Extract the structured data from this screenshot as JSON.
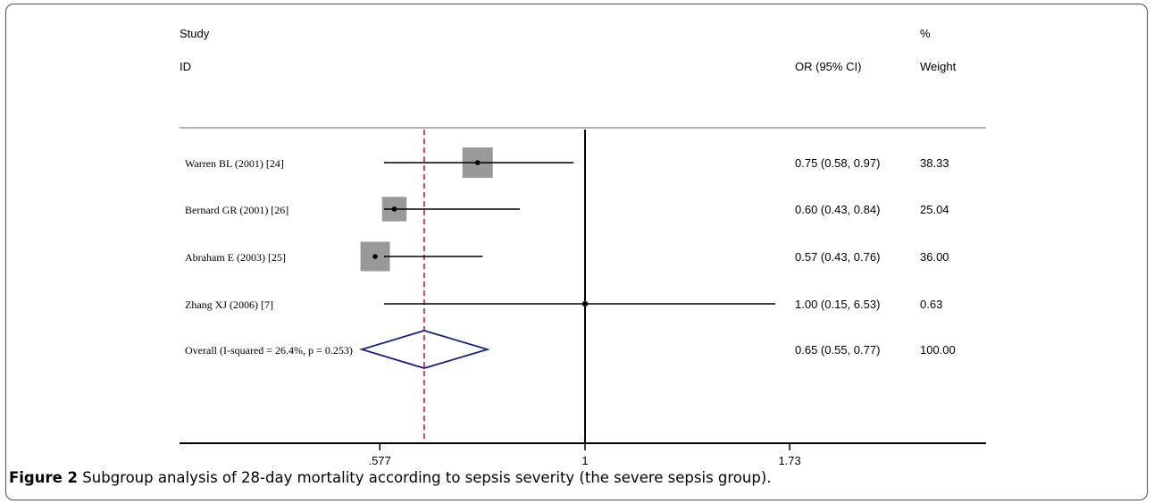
{
  "figure": {
    "caption_label": "Figure 2",
    "caption_text": " Subgroup analysis of 28-day mortality according to sepsis severity (the severe sepsis group)."
  },
  "chart_data": {
    "type": "forest",
    "x_scale": "log",
    "xlim": [
      0.42,
      2.6
    ],
    "null_line": 1,
    "overall_line": 0.65,
    "header": {
      "study_top": "Study",
      "study_bottom": "ID",
      "effect": "OR (95% CI)",
      "weight_top": "%",
      "weight_bottom": "Weight"
    },
    "ticks": [
      {
        "value": 0.577,
        "label": ".577"
      },
      {
        "value": 1,
        "label": "1"
      },
      {
        "value": 1.73,
        "label": "1.73"
      }
    ],
    "studies": [
      {
        "label": "Warren BL  (2001) [24]",
        "or": 0.75,
        "lower": 0.58,
        "upper": 0.97,
        "or_text": "0.75 (0.58, 0.97)",
        "weight": 38.33,
        "weight_text": "38.33"
      },
      {
        "label": "Bernard GR  (2001) [26]",
        "or": 0.6,
        "lower": 0.43,
        "upper": 0.84,
        "or_text": "0.60 (0.43, 0.84)",
        "weight": 25.04,
        "weight_text": "25.04"
      },
      {
        "label": "Abraham E  (2003) [25]",
        "or": 0.57,
        "lower": 0.43,
        "upper": 0.76,
        "or_text": "0.57 (0.43, 0.76)",
        "weight": 36.0,
        "weight_text": "36.00"
      },
      {
        "label": "Zhang XJ  (2006) [7]",
        "or": 1.0,
        "lower": 0.15,
        "upper": 6.53,
        "or_text": "1.00 (0.15, 6.53)",
        "weight": 0.63,
        "weight_text": "0.63"
      }
    ],
    "overall": {
      "label": "Overall  (I-squared = 26.4%, p = 0.253)",
      "or": 0.65,
      "lower": 0.55,
      "upper": 0.77,
      "or_text": "0.65 (0.55, 0.77)",
      "weight_text": "100.00"
    },
    "colors": {
      "box": "#999999",
      "line": "#000000",
      "diamond": "#1a237e",
      "ref_line": "#a0153e",
      "header_rule": "#b3b3b3"
    }
  }
}
